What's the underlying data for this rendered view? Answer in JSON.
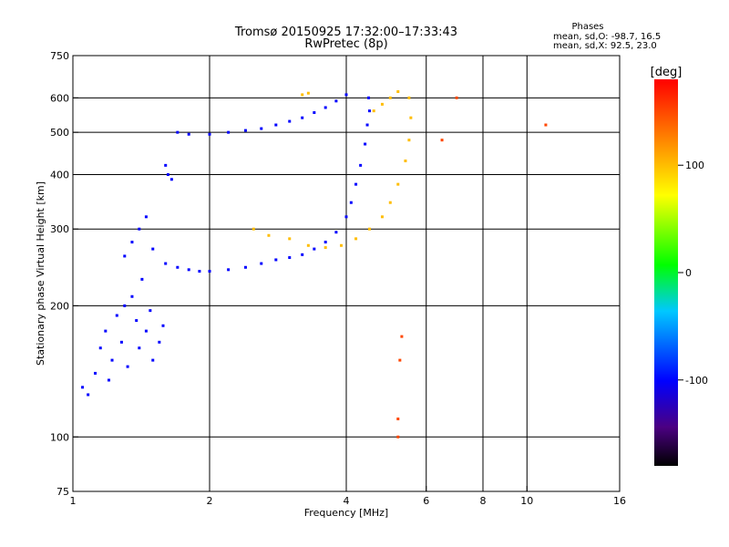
{
  "chart_data": {
    "type": "scatter",
    "title": "Tromsø 20150925 17:32:00–17:33:43",
    "subtitle": "RwPretec (8p)",
    "xlabel": "Frequency [MHz]",
    "ylabel": "Stationary phase Virtual Height [km]",
    "x_scale": "log",
    "y_scale": "log",
    "xlim": [
      1,
      16
    ],
    "ylim": [
      75,
      750
    ],
    "x_ticks": [
      1,
      2,
      4,
      6,
      8,
      10,
      16
    ],
    "x_tick_labels": [
      "1",
      "2",
      "4",
      "6",
      "8",
      "10",
      "16"
    ],
    "x_gridlines": [
      2,
      4,
      6,
      8,
      10
    ],
    "y_ticks": [
      75,
      100,
      200,
      300,
      400,
      500,
      600,
      750
    ],
    "y_tick_labels": [
      "75",
      "100",
      "200",
      "300",
      "400",
      "500",
      "600",
      "750"
    ],
    "y_gridlines": [
      100,
      200,
      300,
      400,
      500,
      600
    ],
    "grid": true,
    "stats": {
      "heading": "Phases",
      "line_o": "mean, sd,O: -98.7, 16.5",
      "line_x": "mean, sd,X:  92.5, 23.0"
    },
    "colorbar": {
      "label": "[deg]",
      "range": [
        -180,
        180
      ],
      "ticks": [
        100,
        0,
        -100
      ],
      "tick_labels": [
        "100",
        "0",
        "-100"
      ],
      "colormap": "rainbow"
    },
    "series": [
      {
        "color_value": -100,
        "points": [
          [
            1.05,
            130
          ],
          [
            1.08,
            125
          ],
          [
            1.12,
            140
          ],
          [
            1.15,
            160
          ],
          [
            1.18,
            175
          ],
          [
            1.2,
            135
          ],
          [
            1.22,
            150
          ],
          [
            1.25,
            190
          ],
          [
            1.28,
            165
          ],
          [
            1.3,
            200
          ],
          [
            1.32,
            145
          ],
          [
            1.35,
            210
          ],
          [
            1.38,
            185
          ],
          [
            1.4,
            160
          ],
          [
            1.42,
            230
          ],
          [
            1.45,
            175
          ],
          [
            1.48,
            195
          ],
          [
            1.5,
            150
          ],
          [
            1.55,
            165
          ],
          [
            1.58,
            180
          ],
          [
            1.3,
            260
          ],
          [
            1.35,
            280
          ],
          [
            1.4,
            300
          ],
          [
            1.45,
            320
          ],
          [
            1.5,
            270
          ],
          [
            1.6,
            250
          ],
          [
            1.7,
            245
          ],
          [
            1.8,
            242
          ],
          [
            1.9,
            240
          ],
          [
            2.0,
            240
          ],
          [
            2.2,
            242
          ],
          [
            2.4,
            245
          ],
          [
            2.6,
            250
          ],
          [
            2.8,
            255
          ],
          [
            3.0,
            258
          ],
          [
            3.2,
            262
          ],
          [
            3.4,
            270
          ],
          [
            3.6,
            280
          ],
          [
            3.8,
            295
          ],
          [
            4.0,
            320
          ],
          [
            4.1,
            345
          ],
          [
            4.2,
            380
          ],
          [
            4.3,
            420
          ],
          [
            4.4,
            470
          ],
          [
            4.45,
            520
          ],
          [
            4.5,
            560
          ],
          [
            4.48,
            600
          ],
          [
            1.7,
            500
          ],
          [
            1.8,
            495
          ],
          [
            2.0,
            495
          ],
          [
            2.2,
            500
          ],
          [
            2.4,
            505
          ],
          [
            2.6,
            510
          ],
          [
            2.8,
            520
          ],
          [
            3.0,
            530
          ],
          [
            3.2,
            540
          ],
          [
            3.4,
            555
          ],
          [
            3.6,
            570
          ],
          [
            3.8,
            590
          ],
          [
            4.0,
            610
          ],
          [
            1.6,
            420
          ],
          [
            1.62,
            400
          ],
          [
            1.65,
            390
          ]
        ]
      },
      {
        "color_value": 100,
        "points": [
          [
            2.5,
            300
          ],
          [
            2.7,
            290
          ],
          [
            3.0,
            285
          ],
          [
            3.3,
            275
          ],
          [
            3.6,
            272
          ],
          [
            3.9,
            275
          ],
          [
            4.2,
            285
          ],
          [
            4.5,
            300
          ],
          [
            4.8,
            320
          ],
          [
            5.0,
            345
          ],
          [
            5.2,
            380
          ],
          [
            5.4,
            430
          ],
          [
            5.5,
            480
          ],
          [
            5.55,
            540
          ],
          [
            5.5,
            600
          ],
          [
            4.6,
            560
          ],
          [
            4.8,
            580
          ],
          [
            5.0,
            600
          ],
          [
            5.2,
            620
          ],
          [
            3.2,
            610
          ],
          [
            3.3,
            615
          ]
        ]
      },
      {
        "color_value": 150,
        "points": [
          [
            5.2,
            100
          ],
          [
            5.2,
            110
          ],
          [
            5.25,
            150
          ],
          [
            5.3,
            170
          ],
          [
            6.5,
            480
          ],
          [
            7.0,
            600
          ],
          [
            11.0,
            520
          ]
        ]
      }
    ]
  }
}
